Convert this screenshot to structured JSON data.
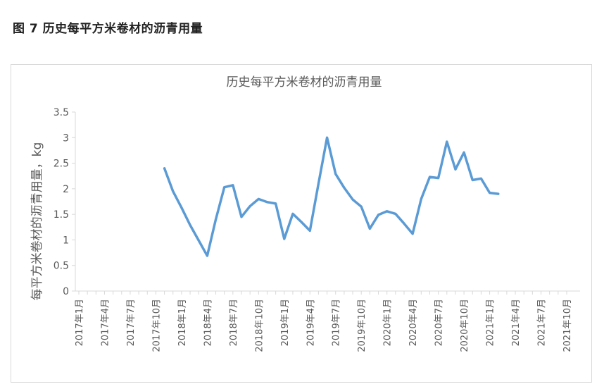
{
  "figure_caption": "图 7  历史每平方米卷材的沥青用量",
  "chart_data": {
    "type": "line",
    "title": "历史每平方米卷材的沥青用量",
    "xlabel": "",
    "ylabel": "每平方米卷材的沥青用量，kg",
    "ylim": [
      0,
      3.5
    ],
    "yticks": [
      "0",
      "0.5",
      "1",
      "1.5",
      "2",
      "2.5",
      "3",
      "3.5"
    ],
    "xticks": [
      "2017年1月",
      "2017年4月",
      "2017年7月",
      "2017年10月",
      "2018年1月",
      "2018年4月",
      "2018年7月",
      "2018年10月",
      "2019年1月",
      "2019年4月",
      "2019年7月",
      "2019年10月",
      "2020年1月",
      "2020年4月",
      "2020年7月",
      "2020年10月",
      "2021年1月",
      "2021年4月",
      "2021年7月",
      "2021年10月"
    ],
    "grid": false,
    "legend": "none",
    "series_color": "#5b9bd5",
    "series": [
      {
        "values": [
          [
            "2017-11-01",
            2.4
          ],
          [
            "2017-12-01",
            1.95
          ],
          [
            "2018-01-01",
            1.63
          ],
          [
            "2018-02-01",
            1.29
          ],
          [
            "2018-03-01",
            0.99
          ],
          [
            "2018-04-01",
            0.69
          ],
          [
            "2018-05-01",
            1.4
          ],
          [
            "2018-06-01",
            2.03
          ],
          [
            "2018-07-01",
            2.07
          ],
          [
            "2018-08-01",
            1.45
          ],
          [
            "2018-09-01",
            1.66
          ],
          [
            "2018-10-01",
            1.8
          ],
          [
            "2018-11-01",
            1.74
          ],
          [
            "2018-12-01",
            1.71
          ],
          [
            "2019-01-01",
            1.02
          ],
          [
            "2019-02-01",
            1.51
          ],
          [
            "2019-03-01",
            1.35
          ],
          [
            "2019-04-01",
            1.18
          ],
          [
            "2019-05-01",
            2.1
          ],
          [
            "2019-06-01",
            3.0
          ],
          [
            "2019-07-01",
            2.29
          ],
          [
            "2019-08-01",
            2.02
          ],
          [
            "2019-09-01",
            1.79
          ],
          [
            "2019-10-01",
            1.65
          ],
          [
            "2019-11-01",
            1.22
          ],
          [
            "2019-12-01",
            1.49
          ],
          [
            "2020-01-01",
            1.56
          ],
          [
            "2020-02-01",
            1.51
          ],
          [
            "2020-03-01",
            1.32
          ],
          [
            "2020-04-01",
            1.12
          ],
          [
            "2020-05-01",
            1.8
          ],
          [
            "2020-06-01",
            2.23
          ],
          [
            "2020-07-01",
            2.21
          ],
          [
            "2020-08-01",
            2.92
          ],
          [
            "2020-09-01",
            2.38
          ],
          [
            "2020-10-01",
            2.71
          ],
          [
            "2020-11-01",
            2.17
          ],
          [
            "2020-12-01",
            2.2
          ],
          [
            "2021-01-01",
            1.92
          ],
          [
            "2021-02-01",
            1.9
          ]
        ]
      }
    ]
  }
}
